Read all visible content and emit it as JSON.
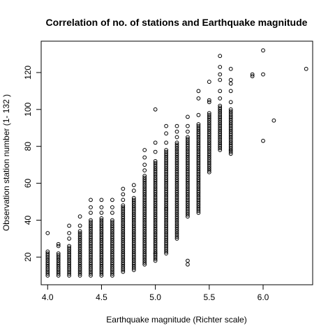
{
  "chart_data": {
    "type": "scatter",
    "title": "Correlation of no. of stations and Earthquake magnitude",
    "xlabel": "Earthquake magnitude (Richter scale)",
    "ylabel": "Observation station number (1- 132 )",
    "xlim": [
      3.94,
      6.46
    ],
    "ylim": [
      5,
      137
    ],
    "xticks": [
      4.0,
      4.5,
      5.0,
      5.5,
      6.0
    ],
    "xtick_labels": [
      "4.0",
      "4.5",
      "5.0",
      "5.5",
      "6.0"
    ],
    "yticks": [
      20,
      40,
      60,
      80,
      100,
      120
    ],
    "ytick_labels": [
      "20",
      "40",
      "60",
      "80",
      "100",
      "120"
    ],
    "grid": false,
    "legend": "none",
    "marker": "open-circle",
    "columns": [
      {
        "x": 4.0,
        "y_min": 10,
        "y_max": 23,
        "extra": [
          33
        ]
      },
      {
        "x": 4.1,
        "y_min": 10,
        "y_max": 22,
        "extra": [
          26,
          27
        ]
      },
      {
        "x": 4.2,
        "y_min": 10,
        "y_max": 26,
        "extra": [
          30,
          33,
          37
        ]
      },
      {
        "x": 4.3,
        "y_min": 10,
        "y_max": 34,
        "extra": [
          37,
          42
        ]
      },
      {
        "x": 4.4,
        "y_min": 10,
        "y_max": 40,
        "extra": [
          44,
          47,
          51
        ]
      },
      {
        "x": 4.5,
        "y_min": 10,
        "y_max": 41,
        "extra": [
          44,
          47,
          51
        ]
      },
      {
        "x": 4.6,
        "y_min": 10,
        "y_max": 40,
        "extra": [
          44,
          47,
          51
        ]
      },
      {
        "x": 4.7,
        "y_min": 12,
        "y_max": 48,
        "extra": [
          51,
          54,
          57
        ]
      },
      {
        "x": 4.8,
        "y_min": 13,
        "y_max": 52,
        "extra": [
          56,
          59
        ]
      },
      {
        "x": 4.9,
        "y_min": 16,
        "y_max": 64,
        "extra": [
          67,
          70,
          74,
          78
        ]
      },
      {
        "x": 5.0,
        "y_min": 18,
        "y_max": 72,
        "extra": [
          77,
          82,
          100,
          22
        ]
      },
      {
        "x": 5.1,
        "y_min": 22,
        "y_max": 78,
        "extra": [
          82,
          87,
          91,
          46
        ]
      },
      {
        "x": 5.2,
        "y_min": 30,
        "y_max": 82,
        "extra": [
          85,
          88,
          91
        ]
      },
      {
        "x": 5.3,
        "y_min": 42,
        "y_max": 85,
        "extra": [
          88,
          91,
          96,
          16,
          18
        ]
      },
      {
        "x": 5.4,
        "y_min": 44,
        "y_max": 92,
        "extra": [
          97,
          106,
          110
        ]
      },
      {
        "x": 5.5,
        "y_min": 66,
        "y_max": 98,
        "extra": [
          104,
          105,
          115
        ]
      },
      {
        "x": 5.6,
        "y_min": 78,
        "y_max": 102,
        "extra": [
          106,
          110,
          116,
          119,
          123,
          129
        ]
      },
      {
        "x": 5.7,
        "y_min": 76,
        "y_max": 100,
        "extra": [
          104,
          110,
          114,
          116,
          122,
          78
        ]
      }
    ],
    "points": [
      {
        "x": 5.9,
        "y": 118
      },
      {
        "x": 5.9,
        "y": 119
      },
      {
        "x": 6.0,
        "y": 132
      },
      {
        "x": 6.0,
        "y": 119
      },
      {
        "x": 6.0,
        "y": 83
      },
      {
        "x": 6.1,
        "y": 94
      },
      {
        "x": 6.4,
        "y": 122
      }
    ]
  }
}
